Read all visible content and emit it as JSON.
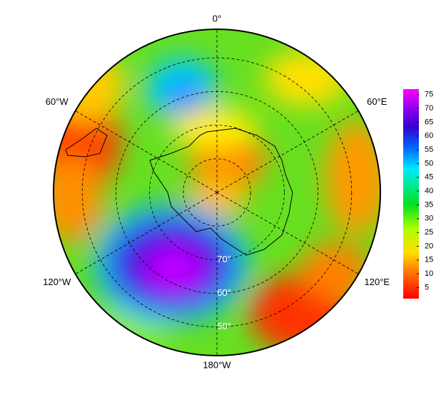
{
  "map": {
    "longitude_labels": [
      {
        "value": 0,
        "label": "0°"
      },
      {
        "value": 60,
        "label": "60°E"
      },
      {
        "value": 120,
        "label": "120°E"
      },
      {
        "value": 180,
        "label": "180°W"
      },
      {
        "value": -120,
        "label": "120°W"
      },
      {
        "value": -60,
        "label": "60°W"
      }
    ],
    "latitude_labels": [
      {
        "value": 70,
        "label": "70°"
      },
      {
        "value": 60,
        "label": "60°"
      },
      {
        "value": 50,
        "label": "50°"
      }
    ],
    "colorbar": {
      "range": [
        1,
        77
      ],
      "ticks": [
        5,
        10,
        15,
        20,
        25,
        30,
        35,
        40,
        45,
        50,
        55,
        60,
        65,
        70,
        75
      ]
    }
  }
}
